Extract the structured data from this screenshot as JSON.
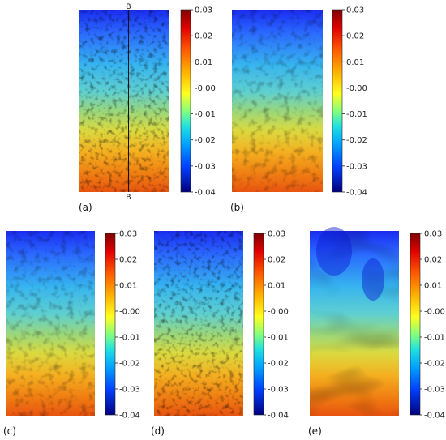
{
  "figure": {
    "panels": [
      {
        "id": "a",
        "label": "(a)",
        "section_label_top": "B",
        "section_label_bottom": "B",
        "texture": "high"
      },
      {
        "id": "b",
        "label": "(b)",
        "texture": "medium"
      },
      {
        "id": "c",
        "label": "(c)",
        "texture": "medium"
      },
      {
        "id": "d",
        "label": "(d)",
        "texture": "high"
      },
      {
        "id": "e",
        "label": "(e)",
        "texture": "smooth"
      }
    ],
    "colorbar": {
      "colormap": "jet",
      "min": -0.04,
      "max": 0.03,
      "tick_values": [
        0.03,
        0.02,
        0.01,
        0.0,
        -0.01,
        -0.02,
        -0.03,
        -0.04
      ],
      "tick_labels": [
        "0.03",
        "0.02",
        "0.01",
        "-0.00",
        "-0.01",
        "-0.02",
        "-0.03",
        "-0.04"
      ]
    }
  }
}
